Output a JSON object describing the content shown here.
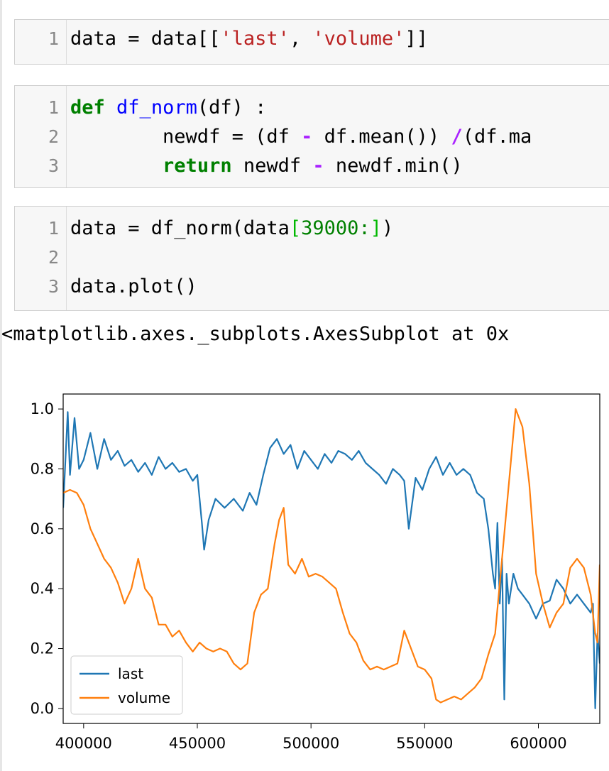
{
  "cells": [
    {
      "lines": [
        {
          "num": "1",
          "tokens": [
            {
              "t": "data = data[[",
              "c": ""
            },
            {
              "t": "'last'",
              "c": "str"
            },
            {
              "t": ", ",
              "c": ""
            },
            {
              "t": "'volume'",
              "c": "str"
            },
            {
              "t": "]]",
              "c": ""
            }
          ]
        }
      ]
    },
    {
      "lines": [
        {
          "num": "1",
          "tokens": [
            {
              "t": "def",
              "c": "kw"
            },
            {
              "t": " ",
              "c": ""
            },
            {
              "t": "df_norm",
              "c": "fn"
            },
            {
              "t": "(df) :",
              "c": ""
            }
          ]
        },
        {
          "num": "2",
          "tokens": [
            {
              "t": "        newdf = (df ",
              "c": ""
            },
            {
              "t": "-",
              "c": "op"
            },
            {
              "t": " df.mean()) ",
              "c": ""
            },
            {
              "t": "/",
              "c": "op"
            },
            {
              "t": "(df.ma",
              "c": ""
            }
          ]
        },
        {
          "num": "3",
          "tokens": [
            {
              "t": "        ",
              "c": ""
            },
            {
              "t": "return",
              "c": "kw"
            },
            {
              "t": " newdf ",
              "c": ""
            },
            {
              "t": "-",
              "c": "op"
            },
            {
              "t": " newdf.min()",
              "c": ""
            }
          ]
        }
      ]
    },
    {
      "lines": [
        {
          "num": "1",
          "tokens": [
            {
              "t": "data = df_norm(data",
              "c": ""
            },
            {
              "t": "[",
              "c": "brk"
            },
            {
              "t": "39000:",
              "c": "num"
            },
            {
              "t": "]",
              "c": "brk"
            },
            {
              "t": ")",
              "c": ""
            }
          ]
        },
        {
          "num": "2",
          "tokens": []
        },
        {
          "num": "3",
          "tokens": [
            {
              "t": "data.plot()",
              "c": ""
            }
          ]
        }
      ]
    }
  ],
  "output_text": "<matplotlib.axes._subplots.AxesSubplot at 0x",
  "chart_data": {
    "type": "line",
    "title": "",
    "xlabel": "",
    "ylabel": "",
    "xlim": [
      391000,
      627000
    ],
    "ylim": [
      -0.05,
      1.05
    ],
    "xticks": [
      400000,
      450000,
      500000,
      550000,
      600000
    ],
    "xtick_labels": [
      "400000",
      "450000",
      "500000",
      "550000",
      "600000"
    ],
    "yticks": [
      0.0,
      0.2,
      0.4,
      0.6,
      0.8,
      1.0
    ],
    "ytick_labels": [
      "0.0",
      "0.2",
      "0.4",
      "0.6",
      "0.8",
      "1.0"
    ],
    "grid": false,
    "legend_position": "lower-left",
    "series": [
      {
        "name": "last",
        "color": "#1f77b4",
        "x": [
          391000,
          393000,
          394000,
          396000,
          398000,
          400000,
          403000,
          406000,
          409000,
          412000,
          415000,
          418000,
          421000,
          424000,
          427000,
          430000,
          433000,
          436000,
          439000,
          442000,
          445000,
          448000,
          450000,
          452000,
          453000,
          455000,
          458000,
          462000,
          466000,
          470000,
          473000,
          476000,
          479000,
          482000,
          485000,
          488000,
          491000,
          494000,
          497000,
          500000,
          503000,
          506000,
          509000,
          512000,
          515000,
          518000,
          521000,
          524000,
          527000,
          530000,
          533000,
          536000,
          539000,
          541000,
          543000,
          546000,
          549000,
          552000,
          555000,
          558000,
          561000,
          564000,
          567000,
          570000,
          573000,
          576000,
          578000,
          580000,
          581000,
          582000,
          583000,
          584000,
          585000,
          586000,
          587000,
          589000,
          591000,
          593000,
          596000,
          599000,
          602000,
          605000,
          608000,
          611000,
          614000,
          617000,
          620000,
          623000,
          624000,
          625000,
          626000,
          627000
        ],
        "y": [
          0.67,
          0.99,
          0.78,
          0.97,
          0.8,
          0.83,
          0.92,
          0.8,
          0.9,
          0.83,
          0.86,
          0.81,
          0.83,
          0.79,
          0.82,
          0.78,
          0.84,
          0.8,
          0.82,
          0.79,
          0.8,
          0.76,
          0.78,
          0.62,
          0.53,
          0.63,
          0.7,
          0.67,
          0.7,
          0.66,
          0.72,
          0.68,
          0.78,
          0.87,
          0.9,
          0.85,
          0.88,
          0.8,
          0.86,
          0.83,
          0.8,
          0.85,
          0.82,
          0.86,
          0.85,
          0.83,
          0.86,
          0.82,
          0.8,
          0.78,
          0.75,
          0.8,
          0.78,
          0.76,
          0.6,
          0.77,
          0.73,
          0.8,
          0.84,
          0.78,
          0.82,
          0.78,
          0.8,
          0.78,
          0.72,
          0.7,
          0.6,
          0.45,
          0.4,
          0.62,
          0.35,
          0.5,
          0.03,
          0.45,
          0.35,
          0.45,
          0.4,
          0.38,
          0.35,
          0.3,
          0.35,
          0.36,
          0.43,
          0.4,
          0.35,
          0.38,
          0.35,
          0.32,
          0.35,
          0.0,
          0.25,
          0.15
        ]
      },
      {
        "name": "volume",
        "color": "#ff7f0e",
        "x": [
          391000,
          394000,
          397000,
          400000,
          403000,
          406000,
          409000,
          412000,
          415000,
          418000,
          421000,
          424000,
          427000,
          430000,
          433000,
          436000,
          439000,
          442000,
          445000,
          448000,
          451000,
          454000,
          457000,
          460000,
          463000,
          466000,
          469000,
          472000,
          475000,
          478000,
          481000,
          484000,
          486000,
          488000,
          490000,
          493000,
          496000,
          499000,
          502000,
          505000,
          508000,
          511000,
          514000,
          517000,
          520000,
          523000,
          526000,
          529000,
          532000,
          535000,
          538000,
          541000,
          544000,
          547000,
          550000,
          553000,
          555000,
          557000,
          560000,
          563000,
          566000,
          569000,
          572000,
          575000,
          578000,
          581000,
          584000,
          587000,
          590000,
          593000,
          596000,
          599000,
          602000,
          605000,
          608000,
          611000,
          614000,
          617000,
          620000,
          623000,
          625000,
          626000,
          627000
        ],
        "y": [
          0.72,
          0.73,
          0.72,
          0.68,
          0.6,
          0.55,
          0.5,
          0.47,
          0.42,
          0.35,
          0.4,
          0.5,
          0.4,
          0.37,
          0.28,
          0.28,
          0.24,
          0.26,
          0.22,
          0.19,
          0.22,
          0.2,
          0.19,
          0.2,
          0.19,
          0.15,
          0.13,
          0.15,
          0.32,
          0.38,
          0.4,
          0.55,
          0.63,
          0.67,
          0.48,
          0.45,
          0.5,
          0.44,
          0.45,
          0.44,
          0.42,
          0.4,
          0.32,
          0.25,
          0.22,
          0.16,
          0.13,
          0.14,
          0.13,
          0.14,
          0.15,
          0.26,
          0.2,
          0.14,
          0.13,
          0.1,
          0.03,
          0.02,
          0.03,
          0.04,
          0.03,
          0.05,
          0.07,
          0.1,
          0.18,
          0.25,
          0.5,
          0.75,
          1.0,
          0.94,
          0.75,
          0.45,
          0.35,
          0.27,
          0.32,
          0.35,
          0.47,
          0.5,
          0.47,
          0.38,
          0.25,
          0.22,
          0.48
        ]
      }
    ]
  }
}
